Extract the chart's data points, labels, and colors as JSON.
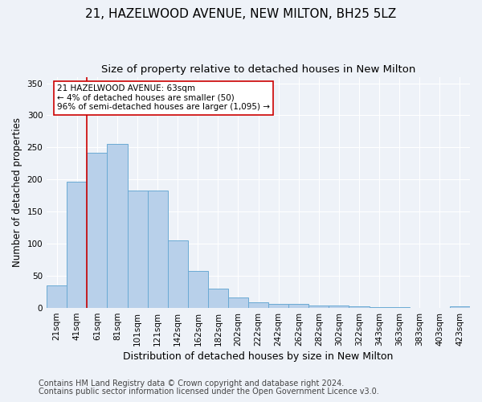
{
  "title": "21, HAZELWOOD AVENUE, NEW MILTON, BH25 5LZ",
  "subtitle": "Size of property relative to detached houses in New Milton",
  "xlabel": "Distribution of detached houses by size in New Milton",
  "ylabel": "Number of detached properties",
  "categories": [
    "21sqm",
    "41sqm",
    "61sqm",
    "81sqm",
    "101sqm",
    "121sqm",
    "142sqm",
    "162sqm",
    "182sqm",
    "202sqm",
    "222sqm",
    "242sqm",
    "262sqm",
    "282sqm",
    "302sqm",
    "322sqm",
    "343sqm",
    "363sqm",
    "383sqm",
    "403sqm",
    "423sqm"
  ],
  "values": [
    35,
    197,
    242,
    255,
    183,
    183,
    105,
    58,
    30,
    16,
    9,
    6,
    6,
    4,
    4,
    3,
    1,
    1,
    0,
    0,
    2
  ],
  "bar_color": "#b8d0ea",
  "bar_edge_color": "#6aaad4",
  "vline_x": 1.5,
  "vline_color": "#cc0000",
  "annotation_text": "21 HAZELWOOD AVENUE: 63sqm\n← 4% of detached houses are smaller (50)\n96% of semi-detached houses are larger (1,095) →",
  "annotation_box_color": "#ffffff",
  "annotation_box_edge": "#cc0000",
  "ylim": [
    0,
    360
  ],
  "yticks": [
    0,
    50,
    100,
    150,
    200,
    250,
    300,
    350
  ],
  "footer_line1": "Contains HM Land Registry data © Crown copyright and database right 2024.",
  "footer_line2": "Contains public sector information licensed under the Open Government Licence v3.0.",
  "bg_color": "#eef2f8",
  "plot_bg_color": "#eef2f8",
  "grid_color": "#ffffff",
  "title_fontsize": 11,
  "subtitle_fontsize": 9.5,
  "xlabel_fontsize": 9,
  "ylabel_fontsize": 8.5,
  "tick_fontsize": 7.5,
  "footer_fontsize": 7
}
